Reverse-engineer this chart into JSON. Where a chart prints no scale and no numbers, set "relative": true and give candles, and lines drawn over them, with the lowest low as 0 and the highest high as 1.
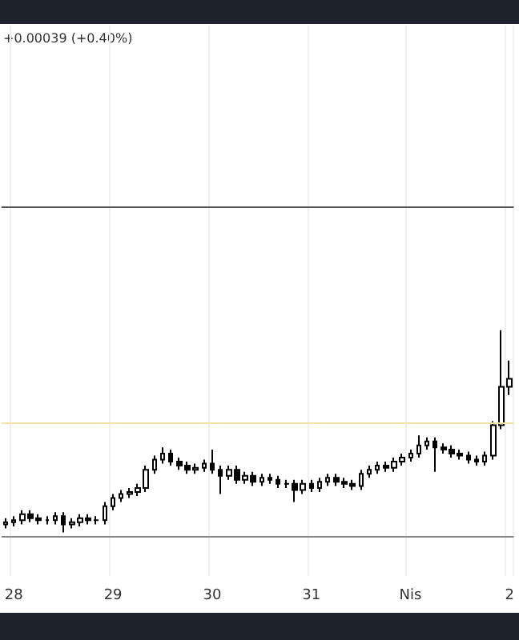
{
  "chart_data": {
    "type": "candlestick",
    "relative": true,
    "color": "#000000",
    "grid": "x",
    "annotations": [
      "+0.00039 (+0.40%)"
    ],
    "categories": [
      null,
      "28",
      null,
      null,
      null,
      null,
      null,
      null,
      null,
      null,
      null,
      null,
      null,
      "29",
      null,
      null,
      null,
      null,
      null,
      null,
      null,
      null,
      null,
      null,
      null,
      "30",
      null,
      null,
      null,
      null,
      null,
      null,
      null,
      null,
      null,
      null,
      null,
      "31",
      null,
      null,
      null,
      null,
      null,
      null,
      null,
      null,
      null,
      null,
      null,
      "Nis",
      null,
      null,
      null,
      null,
      null,
      null,
      null,
      null,
      null,
      null,
      null,
      "2"
    ],
    "ohlc": [
      [
        0.04,
        0.07,
        0.02,
        0.05
      ],
      [
        0.05,
        0.08,
        0.03,
        0.06
      ],
      [
        0.06,
        0.11,
        0.04,
        0.09
      ],
      [
        0.09,
        0.11,
        0.05,
        0.07
      ],
      [
        0.07,
        0.09,
        0.04,
        0.06
      ],
      [
        0.06,
        0.08,
        0.04,
        0.06
      ],
      [
        0.06,
        0.1,
        0.04,
        0.08
      ],
      [
        0.08,
        0.1,
        0,
        0.04
      ],
      [
        0.04,
        0.07,
        0.02,
        0.05
      ],
      [
        0.05,
        0.09,
        0.03,
        0.07
      ],
      [
        0.07,
        0.09,
        0.04,
        0.06
      ],
      [
        0.06,
        0.08,
        0.04,
        0.06
      ],
      [
        0.06,
        0.15,
        0.04,
        0.13
      ],
      [
        0.13,
        0.19,
        0.11,
        0.17
      ],
      [
        0.17,
        0.21,
        0.15,
        0.19
      ],
      [
        0.19,
        0.22,
        0.17,
        0.2
      ],
      [
        0.2,
        0.24,
        0.18,
        0.22
      ],
      [
        0.22,
        0.33,
        0.2,
        0.31
      ],
      [
        0.31,
        0.38,
        0.29,
        0.36
      ],
      [
        0.36,
        0.42,
        0.34,
        0.39
      ],
      [
        0.39,
        0.41,
        0.33,
        0.35
      ],
      [
        0.35,
        0.37,
        0.31,
        0.33
      ],
      [
        0.33,
        0.35,
        0.29,
        0.31
      ],
      [
        0.31,
        0.34,
        0.29,
        0.32
      ],
      [
        0.32,
        0.36,
        0.3,
        0.34
      ],
      [
        0.34,
        0.41,
        0.29,
        0.31
      ],
      [
        0.31,
        0.33,
        0.19,
        0.28
      ],
      [
        0.28,
        0.33,
        0.26,
        0.31
      ],
      [
        0.31,
        0.33,
        0.24,
        0.26
      ],
      [
        0.26,
        0.3,
        0.24,
        0.28
      ],
      [
        0.28,
        0.3,
        0.23,
        0.25
      ],
      [
        0.25,
        0.29,
        0.23,
        0.27
      ],
      [
        0.27,
        0.29,
        0.24,
        0.26
      ],
      [
        0.26,
        0.28,
        0.22,
        0.24
      ],
      [
        0.24,
        0.26,
        0.22,
        0.24
      ],
      [
        0.24,
        0.26,
        0.15,
        0.21
      ],
      [
        0.21,
        0.26,
        0.19,
        0.24
      ],
      [
        0.24,
        0.26,
        0.2,
        0.22
      ],
      [
        0.22,
        0.27,
        0.2,
        0.25
      ],
      [
        0.25,
        0.29,
        0.23,
        0.27
      ],
      [
        0.27,
        0.29,
        0.23,
        0.25
      ],
      [
        0.25,
        0.27,
        0.22,
        0.24
      ],
      [
        0.24,
        0.26,
        0.21,
        0.23
      ],
      [
        0.23,
        0.31,
        0.21,
        0.29
      ],
      [
        0.29,
        0.33,
        0.27,
        0.31
      ],
      [
        0.31,
        0.35,
        0.29,
        0.33
      ],
      [
        0.33,
        0.35,
        0.3,
        0.32
      ],
      [
        0.32,
        0.37,
        0.3,
        0.35
      ],
      [
        0.35,
        0.39,
        0.33,
        0.37
      ],
      [
        0.37,
        0.41,
        0.35,
        0.39
      ],
      [
        0.39,
        0.48,
        0.37,
        0.43
      ],
      [
        0.43,
        0.47,
        0.41,
        0.45
      ],
      [
        0.45,
        0.47,
        0.3,
        0.42
      ],
      [
        0.42,
        0.44,
        0.39,
        0.41
      ],
      [
        0.41,
        0.43,
        0.37,
        0.39
      ],
      [
        0.39,
        0.41,
        0.36,
        0.38
      ],
      [
        0.38,
        0.4,
        0.34,
        0.36
      ],
      [
        0.36,
        0.38,
        0.33,
        0.35
      ],
      [
        0.35,
        0.4,
        0.33,
        0.38
      ],
      [
        0.38,
        0.55,
        0.36,
        0.53
      ],
      [
        0.53,
        1,
        0.51,
        0.72
      ],
      [
        0.72,
        0.85,
        0.68,
        0.76
      ]
    ],
    "ref_lines": [
      {
        "axis": "y",
        "value": 1.61,
        "color": "#555555"
      },
      {
        "axis": "y",
        "value": 0.54,
        "color": "#f3e3a0"
      },
      {
        "axis": "y",
        "value": -0.02,
        "color": "#888888"
      }
    ]
  }
}
